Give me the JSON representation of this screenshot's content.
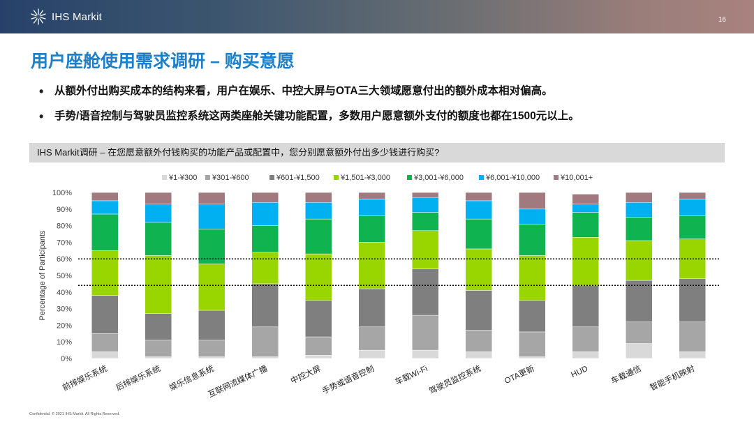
{
  "header": {
    "brand": "IHS Markit",
    "page_number": "16"
  },
  "title": "用户座舱使用需求调研 – 购买意愿",
  "bullets": [
    "从额外付出购买成本的结构来看，用户在娱乐、中控大屏与OTA三大领域愿意付出的额外成本相对偏高。",
    "手势/语音控制与驾驶员监控系统这两类座舱关键功能配置，多数用户愿意额外支付的额度也都在1500元以上。"
  ],
  "chart_header": "IHS Markit调研 – 在您愿意额外付钱购买的功能产品或配置中，您分别愿意额外付出多少钱进行购买?",
  "footer": "Confidential. © 2021 IHS Markit. All Rights Reserved.",
  "colors": {
    "accent": "#1d7fc7",
    "series": [
      "#d9d9d9",
      "#a6a6a6",
      "#7f7f7f",
      "#99d600",
      "#0fb34f",
      "#00b0f0",
      "#a07a7f"
    ]
  },
  "chart_data": {
    "type": "bar",
    "stacked": true,
    "title": "",
    "xlabel": "",
    "ylabel": "Percentage of Participants",
    "ylim": [
      0,
      100
    ],
    "y_ticks": [
      "0%",
      "10%",
      "20%",
      "30%",
      "40%",
      "50%",
      "60%",
      "70%",
      "80%",
      "90%",
      "100%"
    ],
    "reference_lines": [
      44,
      60
    ],
    "legend_position": "top",
    "categories": [
      "前排娱乐系统",
      "后排娱乐系统",
      "娱乐信息系统",
      "互联网流媒体广播",
      "中控大屏",
      "手势或语音控制",
      "车载Wi-Fi",
      "驾驶员监控系统",
      "OTA更新",
      "HUD",
      "车载通信",
      "智能手机映射"
    ],
    "series": [
      {
        "name": "¥1-¥300",
        "values": [
          4,
          1,
          1,
          1,
          2,
          5,
          5,
          4,
          1,
          4,
          9,
          4
        ]
      },
      {
        "name": "¥301-¥600",
        "values": [
          11,
          10,
          10,
          18,
          11,
          14,
          21,
          13,
          15,
          15,
          13,
          18
        ]
      },
      {
        "name": "¥601-¥1,500",
        "values": [
          23,
          16,
          18,
          26,
          22,
          23,
          28,
          24,
          19,
          25,
          25,
          26
        ]
      },
      {
        "name": "¥1,501-¥3,000",
        "values": [
          27,
          35,
          28,
          19,
          28,
          28,
          23,
          25,
          27,
          29,
          24,
          24
        ]
      },
      {
        "name": "¥3,001-¥6,000",
        "values": [
          22,
          20,
          21,
          16,
          21,
          16,
          11,
          18,
          19,
          15,
          14,
          14
        ]
      },
      {
        "name": "¥6,001-¥10,000",
        "values": [
          8,
          11,
          15,
          14,
          10,
          10,
          9,
          11,
          9,
          5,
          9,
          10
        ]
      },
      {
        "name": "¥10,001+",
        "values": [
          5,
          7,
          7,
          6,
          6,
          4,
          3,
          5,
          10,
          6,
          6,
          4
        ]
      }
    ]
  }
}
